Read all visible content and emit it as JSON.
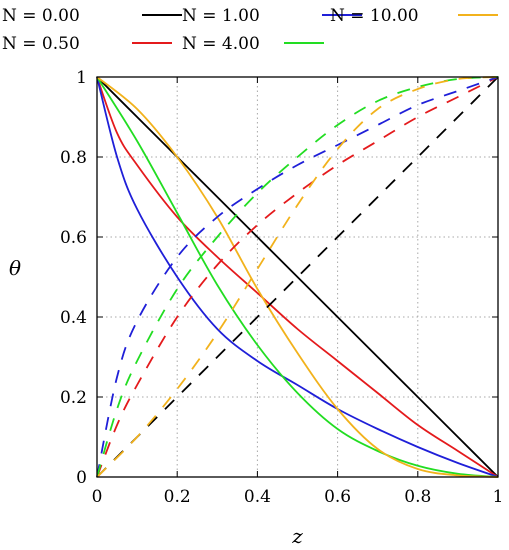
{
  "chart_data": {
    "type": "line",
    "title": "",
    "xlabel": "z",
    "ylabel": "θ",
    "xlim": [
      0,
      1
    ],
    "ylim": [
      0,
      1
    ],
    "grid": true,
    "legend_placement": "top",
    "xticks": [
      "0",
      "0.2",
      "0.4",
      "0.6",
      "0.8",
      "1"
    ],
    "yticks": [
      "0",
      "0.2",
      "0.4",
      "0.6",
      "0.8",
      "1"
    ],
    "legend": [
      {
        "label": "N = 0.00",
        "color": "#000000"
      },
      {
        "label": "N = 0.50",
        "color": "#e41a1c"
      },
      {
        "label": "N = 1.00",
        "color": "#1f1fd8"
      },
      {
        "label": "N = 4.00",
        "color": "#22dd22"
      },
      {
        "label": "N = 10.00",
        "color": "#f2b21c"
      }
    ],
    "series": [
      {
        "name": "N = 0.00",
        "color": "#000000",
        "style": "solid",
        "x": [
          0,
          0.1,
          0.2,
          0.3,
          0.4,
          0.5,
          0.6,
          0.7,
          0.8,
          0.9,
          1.0
        ],
        "y": [
          1.0,
          0.9,
          0.8,
          0.7,
          0.6,
          0.5,
          0.4,
          0.3,
          0.2,
          0.1,
          0.0
        ]
      },
      {
        "name": "N = 0.50",
        "color": "#e41a1c",
        "style": "solid",
        "x": [
          0,
          0.05,
          0.1,
          0.2,
          0.3,
          0.4,
          0.5,
          0.6,
          0.7,
          0.8,
          0.9,
          1.0
        ],
        "y": [
          1.0,
          0.86,
          0.78,
          0.65,
          0.55,
          0.46,
          0.37,
          0.29,
          0.21,
          0.13,
          0.065,
          0.0
        ]
      },
      {
        "name": "N = 1.00",
        "color": "#1f1fd8",
        "style": "solid",
        "x": [
          0,
          0.05,
          0.1,
          0.2,
          0.3,
          0.4,
          0.5,
          0.6,
          0.7,
          0.8,
          0.9,
          1.0
        ],
        "y": [
          1.0,
          0.8,
          0.67,
          0.5,
          0.37,
          0.29,
          0.23,
          0.17,
          0.12,
          0.075,
          0.035,
          0.0
        ]
      },
      {
        "name": "N = 4.00",
        "color": "#22dd22",
        "style": "solid",
        "x": [
          0,
          0.1,
          0.2,
          0.3,
          0.4,
          0.5,
          0.6,
          0.7,
          0.8,
          0.9,
          1.0
        ],
        "y": [
          1.0,
          0.84,
          0.66,
          0.48,
          0.33,
          0.21,
          0.12,
          0.065,
          0.028,
          0.008,
          0.0
        ]
      },
      {
        "name": "N = 10.00",
        "color": "#f2b21c",
        "style": "solid",
        "x": [
          0,
          0.1,
          0.2,
          0.3,
          0.4,
          0.5,
          0.6,
          0.7,
          0.8,
          0.9,
          1.0
        ],
        "y": [
          1.0,
          0.92,
          0.8,
          0.65,
          0.47,
          0.31,
          0.17,
          0.07,
          0.02,
          0.004,
          0.0
        ]
      },
      {
        "name": "N = 0.00",
        "color": "#000000",
        "style": "dashed",
        "x": [
          0,
          0.1,
          0.2,
          0.3,
          0.4,
          0.5,
          0.6,
          0.7,
          0.8,
          0.9,
          1.0
        ],
        "y": [
          0.0,
          0.1,
          0.2,
          0.3,
          0.4,
          0.5,
          0.6,
          0.7,
          0.8,
          0.9,
          1.0
        ]
      },
      {
        "name": "N = 0.50",
        "color": "#e41a1c",
        "style": "dashed",
        "x": [
          0,
          0.05,
          0.1,
          0.2,
          0.3,
          0.4,
          0.5,
          0.6,
          0.7,
          0.8,
          0.9,
          1.0
        ],
        "y": [
          0.0,
          0.13,
          0.23,
          0.4,
          0.53,
          0.63,
          0.71,
          0.78,
          0.84,
          0.9,
          0.95,
          1.0
        ]
      },
      {
        "name": "N = 1.00",
        "color": "#1f1fd8",
        "style": "dashed",
        "x": [
          0,
          0.05,
          0.1,
          0.2,
          0.3,
          0.4,
          0.5,
          0.6,
          0.7,
          0.8,
          0.9,
          1.0
        ],
        "y": [
          0.0,
          0.25,
          0.39,
          0.55,
          0.65,
          0.72,
          0.78,
          0.83,
          0.88,
          0.93,
          0.965,
          1.0
        ]
      },
      {
        "name": "N = 4.00",
        "color": "#22dd22",
        "style": "dashed",
        "x": [
          0,
          0.05,
          0.1,
          0.2,
          0.3,
          0.4,
          0.5,
          0.6,
          0.7,
          0.8,
          0.9,
          1.0
        ],
        "y": [
          0.0,
          0.17,
          0.29,
          0.47,
          0.6,
          0.71,
          0.8,
          0.88,
          0.94,
          0.975,
          0.995,
          1.0
        ]
      },
      {
        "name": "N = 10.00",
        "color": "#f2b21c",
        "style": "dashed",
        "x": [
          0,
          0.1,
          0.2,
          0.3,
          0.4,
          0.5,
          0.6,
          0.7,
          0.8,
          0.9,
          1.0
        ],
        "y": [
          0.0,
          0.1,
          0.22,
          0.36,
          0.52,
          0.68,
          0.82,
          0.92,
          0.97,
          0.995,
          1.0
        ]
      }
    ]
  }
}
